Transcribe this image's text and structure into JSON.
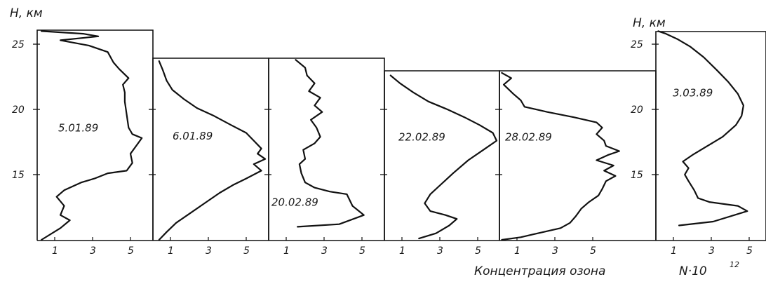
{
  "chart_data": {
    "type": "line",
    "ylabel": "H, км",
    "xlabel": "Концентрация озона",
    "xlabel_formula": "N·10",
    "xlabel_exponent": "12",
    "y_ticks": [
      "15",
      "20",
      "25"
    ],
    "x_ticks": [
      "1",
      "3",
      "5"
    ],
    "x_range": [
      0,
      6
    ],
    "panels": [
      {
        "label": "5.01.89",
        "ylim": [
          10,
          26
        ],
        "show_y_ticks": true,
        "points": [
          [
            0.3,
            10
          ],
          [
            1.3,
            10.9
          ],
          [
            1.8,
            11.5
          ],
          [
            1.3,
            11.9
          ],
          [
            1.5,
            12.6
          ],
          [
            1.1,
            13.3
          ],
          [
            1.5,
            13.8
          ],
          [
            2.4,
            14.4
          ],
          [
            3.1,
            14.7
          ],
          [
            3.8,
            15.1
          ],
          [
            4.8,
            15.3
          ],
          [
            5.1,
            15.9
          ],
          [
            5.0,
            16.6
          ],
          [
            5.3,
            17.2
          ],
          [
            5.6,
            17.8
          ],
          [
            5.1,
            18.1
          ],
          [
            4.9,
            18.6
          ],
          [
            4.8,
            19.6
          ],
          [
            4.7,
            20.6
          ],
          [
            4.7,
            21.3
          ],
          [
            4.6,
            21.9
          ],
          [
            4.9,
            22.4
          ],
          [
            4.4,
            23.1
          ],
          [
            4.1,
            23.6
          ],
          [
            3.8,
            24.4
          ],
          [
            2.8,
            24.9
          ],
          [
            1.3,
            25.3
          ],
          [
            3.3,
            25.6
          ],
          [
            2.5,
            25.8
          ],
          [
            0.3,
            26
          ]
        ]
      },
      {
        "label": "6.01.89",
        "ylim": [
          10,
          24
        ],
        "show_y_ticks": false,
        "points": [
          [
            0.4,
            10
          ],
          [
            0.8,
            10.6
          ],
          [
            1.3,
            11.3
          ],
          [
            2.0,
            12.0
          ],
          [
            2.8,
            12.8
          ],
          [
            3.6,
            13.6
          ],
          [
            4.3,
            14.2
          ],
          [
            5.0,
            14.7
          ],
          [
            5.8,
            15.3
          ],
          [
            5.4,
            15.8
          ],
          [
            6.0,
            16.2
          ],
          [
            5.6,
            16.6
          ],
          [
            5.8,
            17.0
          ],
          [
            5.4,
            17.6
          ],
          [
            5.0,
            18.2
          ],
          [
            4.2,
            18.8
          ],
          [
            3.3,
            19.5
          ],
          [
            2.4,
            20.1
          ],
          [
            1.7,
            20.8
          ],
          [
            1.1,
            21.5
          ],
          [
            0.8,
            22.2
          ],
          [
            0.6,
            23.0
          ],
          [
            0.4,
            23.7
          ]
        ]
      },
      {
        "label": "20.02.89",
        "ylim": [
          10,
          24
        ],
        "show_y_ticks": false,
        "points": [
          [
            1.6,
            11.0
          ],
          [
            3.8,
            11.2
          ],
          [
            5.1,
            11.9
          ],
          [
            4.5,
            12.6
          ],
          [
            4.2,
            13.5
          ],
          [
            3.3,
            13.7
          ],
          [
            2.5,
            14.0
          ],
          [
            2.0,
            14.4
          ],
          [
            1.8,
            15.1
          ],
          [
            1.7,
            15.8
          ],
          [
            2.0,
            16.2
          ],
          [
            1.9,
            16.9
          ],
          [
            2.5,
            17.4
          ],
          [
            2.8,
            17.9
          ],
          [
            2.6,
            18.6
          ],
          [
            2.3,
            19.2
          ],
          [
            2.9,
            19.8
          ],
          [
            2.5,
            20.3
          ],
          [
            2.8,
            20.9
          ],
          [
            2.2,
            21.4
          ],
          [
            2.5,
            22.0
          ],
          [
            2.1,
            22.6
          ],
          [
            2.0,
            23.2
          ],
          [
            1.5,
            23.8
          ]
        ]
      },
      {
        "label": "22.02.89",
        "ylim": [
          10,
          23
        ],
        "show_y_ticks": false,
        "points": [
          [
            1.9,
            10.1
          ],
          [
            2.8,
            10.5
          ],
          [
            3.5,
            11.1
          ],
          [
            3.9,
            11.6
          ],
          [
            3.3,
            11.9
          ],
          [
            2.5,
            12.2
          ],
          [
            2.2,
            12.8
          ],
          [
            2.5,
            13.5
          ],
          [
            3.1,
            14.3
          ],
          [
            3.7,
            15.1
          ],
          [
            4.5,
            16.1
          ],
          [
            5.3,
            16.9
          ],
          [
            6.0,
            17.6
          ],
          [
            5.8,
            18.2
          ],
          [
            5.1,
            18.8
          ],
          [
            4.3,
            19.4
          ],
          [
            3.4,
            20.0
          ],
          [
            2.4,
            20.6
          ],
          [
            1.6,
            21.3
          ],
          [
            0.9,
            22.0
          ],
          [
            0.4,
            22.6
          ]
        ]
      },
      {
        "label": "28.02.89",
        "ylim": [
          10,
          23
        ],
        "show_y_ticks": false,
        "points": [
          [
            0.2,
            10.0
          ],
          [
            1.2,
            10.2
          ],
          [
            2.1,
            10.5
          ],
          [
            3.3,
            10.9
          ],
          [
            3.8,
            11.3
          ],
          [
            4.1,
            11.8
          ],
          [
            4.4,
            12.4
          ],
          [
            4.8,
            12.9
          ],
          [
            5.3,
            13.4
          ],
          [
            5.5,
            13.9
          ],
          [
            5.7,
            14.5
          ],
          [
            6.2,
            14.9
          ],
          [
            5.6,
            15.3
          ],
          [
            6.1,
            15.7
          ],
          [
            5.2,
            16.1
          ],
          [
            5.8,
            16.5
          ],
          [
            6.4,
            16.8
          ],
          [
            5.7,
            17.2
          ],
          [
            5.6,
            17.6
          ],
          [
            5.2,
            18.1
          ],
          [
            5.5,
            18.6
          ],
          [
            5.2,
            19.0
          ],
          [
            4.0,
            19.4
          ],
          [
            2.6,
            19.8
          ],
          [
            1.4,
            20.2
          ],
          [
            1.2,
            20.7
          ],
          [
            0.8,
            21.2
          ],
          [
            0.3,
            21.9
          ],
          [
            0.7,
            22.4
          ],
          [
            0.2,
            22.8
          ]
        ]
      },
      {
        "label": "3.03.89",
        "ylim": [
          10,
          26
        ],
        "show_y_ticks": true,
        "points": [
          [
            1.3,
            11.1
          ],
          [
            3.1,
            11.4
          ],
          [
            4.9,
            12.2
          ],
          [
            4.4,
            12.6
          ],
          [
            2.9,
            12.9
          ],
          [
            2.3,
            13.2
          ],
          [
            2.1,
            13.8
          ],
          [
            1.8,
            14.5
          ],
          [
            1.6,
            15.0
          ],
          [
            1.8,
            15.5
          ],
          [
            1.5,
            16.0
          ],
          [
            2.0,
            16.5
          ],
          [
            2.8,
            17.2
          ],
          [
            3.6,
            17.9
          ],
          [
            4.3,
            18.8
          ],
          [
            4.6,
            19.5
          ],
          [
            4.7,
            20.3
          ],
          [
            4.4,
            21.2
          ],
          [
            3.9,
            22.1
          ],
          [
            3.3,
            23.0
          ],
          [
            2.6,
            24.0
          ],
          [
            1.9,
            24.8
          ],
          [
            1.2,
            25.4
          ],
          [
            0.6,
            25.8
          ],
          [
            0.2,
            26
          ]
        ]
      }
    ]
  }
}
